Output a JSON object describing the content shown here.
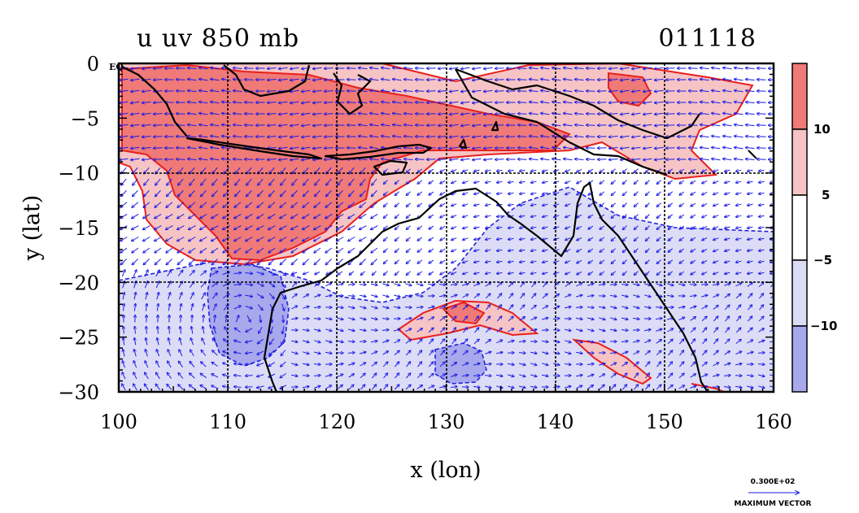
{
  "header": {
    "title": "u uv 850 mb",
    "date": "011118"
  },
  "axes": {
    "xlabel": "x (lon)",
    "ylabel": "y (lat)",
    "xlim": [
      100,
      160
    ],
    "ylim": [
      -30,
      0
    ],
    "xticks": [
      100,
      110,
      120,
      130,
      140,
      150,
      160
    ],
    "yticks": [
      0,
      -5,
      -10,
      -15,
      -20,
      -25,
      -30
    ],
    "xtick_labels": [
      "100",
      "110",
      "120",
      "130",
      "140",
      "150",
      "160"
    ],
    "ytick_labels": [
      "0",
      "−5",
      "−10",
      "−15",
      "−20",
      "−25",
      "−30"
    ],
    "equator_label": "EQ"
  },
  "colorbar": {
    "tick_labels": [
      "10",
      "5",
      "−5",
      "−10"
    ],
    "tick_values": [
      10,
      5,
      -5,
      -10
    ],
    "colors": [
      "#ef7a78",
      "#f6c4c4",
      "#ffffff",
      "#dcdcf6",
      "#a8a8ec"
    ]
  },
  "legend": {
    "vector_value": "0.300E+02",
    "vector_label": "MAXIMUM VECTOR"
  },
  "colors": {
    "vector": "#1a1ae6",
    "positive_contour": "#e8201c",
    "negative_contour": "#2222dd",
    "coastline": "#000000"
  }
}
